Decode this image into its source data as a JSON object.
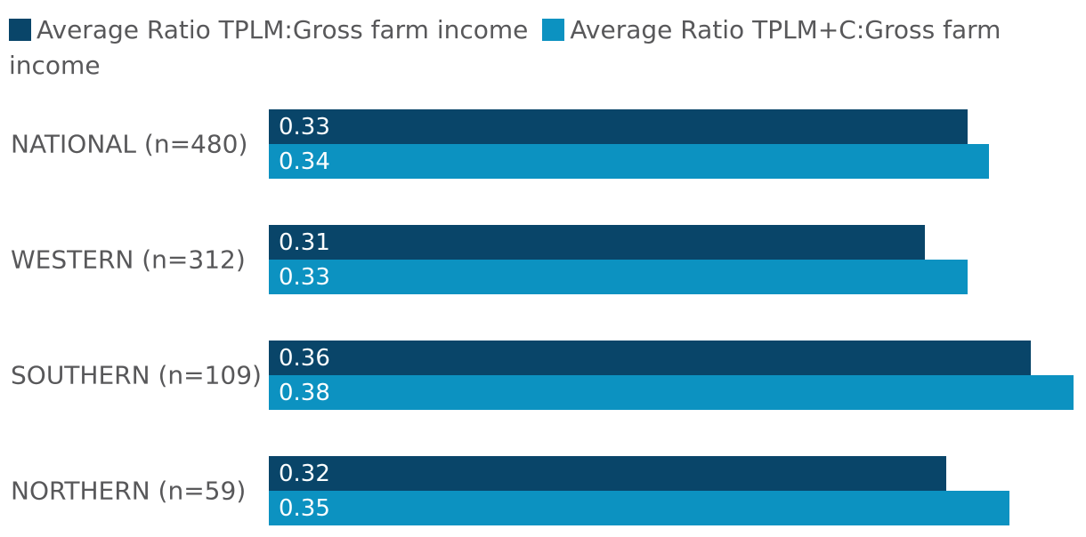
{
  "colors": {
    "background": "#ffffff",
    "series1": "#094569",
    "series2": "#0C92C1",
    "label_text": "#58585A",
    "value_text": "#FAFDFE"
  },
  "chart_data": {
    "type": "bar",
    "orientation": "horizontal",
    "title": "",
    "xlabel": "",
    "ylabel": "",
    "categories": [
      "NATIONAL (n=480)",
      "WESTERN (n=312)",
      "SOUTHERN (n=109)",
      "NORTHERN (n=59)"
    ],
    "series": [
      {
        "name": "Average Ratio TPLM:Gross farm income",
        "color": "#094569",
        "values": [
          0.33,
          0.31,
          0.36,
          0.32
        ]
      },
      {
        "name": "Average Ratio TPLM+C:Gross farm income",
        "color": "#0C92C1",
        "values": [
          0.34,
          0.33,
          0.38,
          0.35
        ]
      }
    ],
    "value_labels_shown": true,
    "value_label_position": "inside-left",
    "xlim": [
      0,
      0.386
    ],
    "axes_shown": false,
    "grid": false,
    "legend_position": "top"
  }
}
